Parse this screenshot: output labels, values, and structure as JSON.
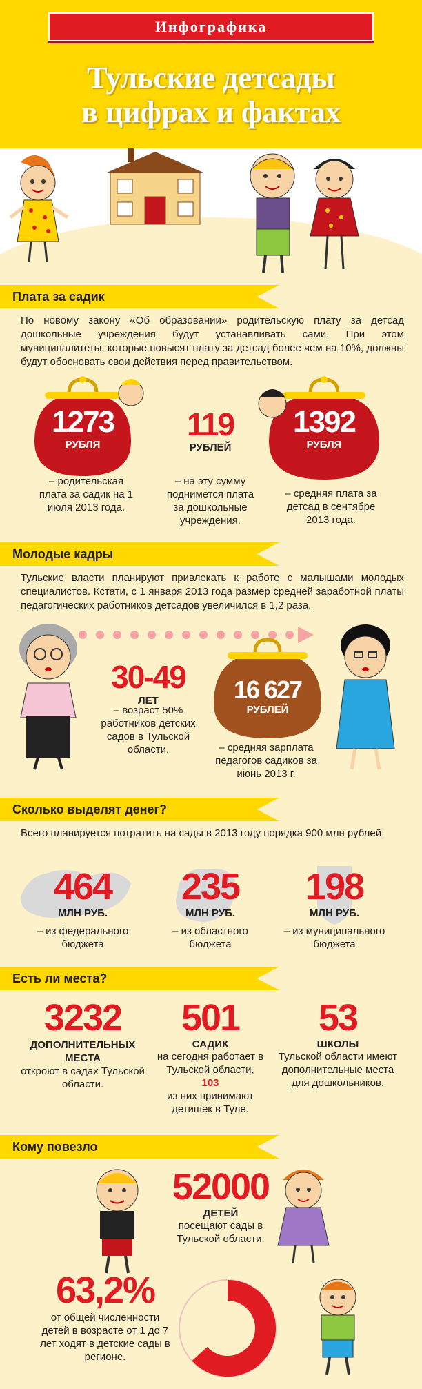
{
  "header": {
    "ribbon": "Инфографика",
    "title_line1": "Тульские детсады",
    "title_line2": "в цифрах и фактах"
  },
  "colors": {
    "accent_yellow": "#ffd800",
    "accent_red": "#e01b22",
    "purse_red": "#c4161c",
    "purse_brown": "#a0511e",
    "background": "#fdf1c9"
  },
  "section1": {
    "heading": "Плата за садик",
    "paragraph": "По новому закону «Об образовании» родительскую плату за детсад дошкольные учреждения будут устанавливать сами. При этом муниципалитеты, которые повысят плату за детсад более чем на 10%, должны будут обосновать свои действия перед правительством.",
    "stats": [
      {
        "value": "1273",
        "unit": "РУБЛЯ",
        "desc": "– родительская плата за садик на 1 июля 2013 года."
      },
      {
        "value": "119",
        "unit": "РУБЛЕЙ",
        "desc": "– на эту сумму поднимется плата за дошкольные учреждения."
      },
      {
        "value": "1392",
        "unit": "РУБЛЯ",
        "desc": "– средняя плата за детсад в сентябре 2013 года."
      }
    ]
  },
  "section2": {
    "heading": "Молодые кадры",
    "paragraph": "Тульские власти планируют привлекать к работе с малышами молодых специалистов. Кстати, с 1 января 2013 года размер средней заработной платы педагогических работников детсадов увеличился в 1,2 раза.",
    "stats": [
      {
        "value": "30-49",
        "unit": "ЛЕТ",
        "desc": "– возраст 50% работников детских садов в Тульской области."
      },
      {
        "value": "16 627",
        "unit": "РУБЛЕЙ",
        "desc": "– средняя зарплата педагогов садиков за июнь 2013 г."
      }
    ]
  },
  "section3": {
    "heading": "Сколько выделят денег?",
    "paragraph": "Всего планируется потратить на сады в 2013 году порядка 900 млн рублей:",
    "stats": [
      {
        "value": "464",
        "unit": "МЛН РУБ.",
        "desc": "– из федерального бюджета"
      },
      {
        "value": "235",
        "unit": "МЛН РУБ.",
        "desc": "– из областного бюджета"
      },
      {
        "value": "198",
        "unit": "МЛН РУБ.",
        "desc": "– из муниципального бюджета"
      }
    ]
  },
  "section4": {
    "heading": "Есть ли места?",
    "stats": [
      {
        "value": "3232",
        "unit": "ДОПОЛНИТЕЛЬНЫХ МЕСТА",
        "desc": "откроют в садах Тульской области."
      },
      {
        "value": "501",
        "unit": "САДИК",
        "desc_before": "на сегодня работает в Тульской области,",
        "highlight": "103",
        "desc_after": "из них принимают детишек в Туле."
      },
      {
        "value": "53",
        "unit": "ШКОЛЫ",
        "desc": "Тульской области имеют дополнительные места для дошкольников."
      }
    ]
  },
  "section5": {
    "heading": "Кому повезло",
    "stats": [
      {
        "value": "52000",
        "unit": "ДЕТЕЙ",
        "desc": "посещают сады в Тульской области."
      },
      {
        "value": "63,2%",
        "desc": "от общей численности детей в возрасте от 1 до 7 лет ходят в детские сады в регионе."
      }
    ],
    "pie_share": 0.632
  }
}
